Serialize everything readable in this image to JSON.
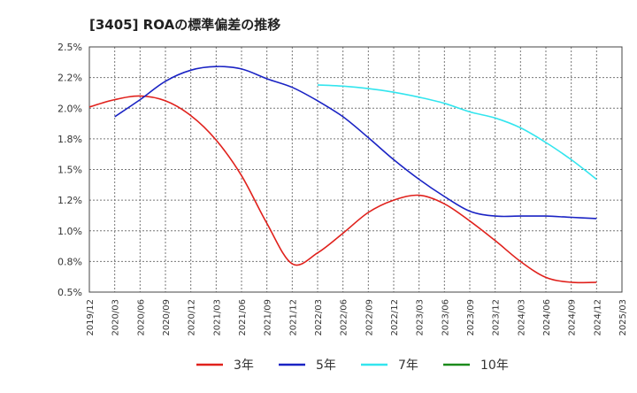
{
  "chart_data": {
    "type": "line",
    "title": "[3405]  ROAの標準偏差の推移",
    "x": [
      "2019/12",
      "2020/03",
      "2020/06",
      "2020/09",
      "2020/12",
      "2021/03",
      "2021/06",
      "2021/09",
      "2021/12",
      "2022/03",
      "2022/06",
      "2022/09",
      "2022/12",
      "2023/03",
      "2023/06",
      "2023/09",
      "2023/12",
      "2024/03",
      "2024/06",
      "2024/09",
      "2024/12",
      "2025/03"
    ],
    "y_ticks": [
      "0.5%",
      "0.8%",
      "1.0%",
      "1.2%",
      "1.5%",
      "1.8%",
      "2.0%",
      "2.2%",
      "2.5%"
    ],
    "ylim": [
      0.5,
      2.5
    ],
    "grid": true,
    "legend_position": "bottom",
    "series": [
      {
        "name": "3年",
        "color": "#e0211c",
        "values": [
          2.01,
          2.07,
          2.1,
          2.06,
          1.94,
          1.74,
          1.45,
          1.06,
          0.73,
          0.82,
          0.98,
          1.15,
          1.25,
          1.29,
          1.22,
          1.08,
          0.92,
          0.75,
          0.62,
          0.58,
          0.58,
          null
        ]
      },
      {
        "name": "5年",
        "color": "#1a23c4",
        "values": [
          null,
          1.93,
          2.07,
          2.22,
          2.31,
          2.34,
          2.32,
          2.24,
          2.17,
          2.06,
          1.93,
          1.76,
          1.58,
          1.42,
          1.28,
          1.16,
          1.12,
          1.12,
          1.12,
          1.11,
          1.1,
          null
        ]
      },
      {
        "name": "7年",
        "color": "#33e5ee",
        "values": [
          null,
          null,
          null,
          null,
          null,
          null,
          null,
          null,
          null,
          2.19,
          2.18,
          2.16,
          2.13,
          2.09,
          2.04,
          1.97,
          1.92,
          1.84,
          1.72,
          1.58,
          1.42,
          null
        ]
      },
      {
        "name": "10年",
        "color": "#1b8a1b",
        "values": [
          null,
          null,
          null,
          null,
          null,
          null,
          null,
          null,
          null,
          null,
          null,
          null,
          null,
          null,
          null,
          null,
          null,
          null,
          null,
          null,
          null,
          null
        ]
      }
    ]
  }
}
